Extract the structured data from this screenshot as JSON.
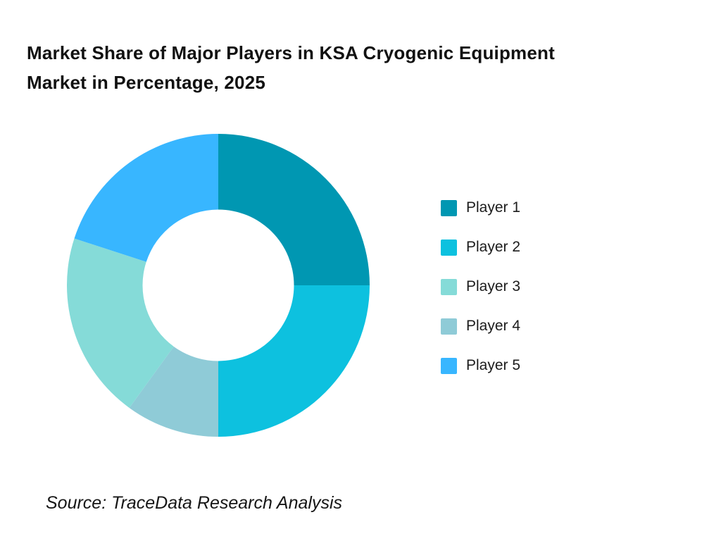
{
  "chart_data": {
    "type": "donut",
    "title": "Market Share of Major Players in KSA Cryogenic Equipment Market in Percentage, 2025",
    "title_lines": [
      "Market Share of Major Players in KSA Cryogenic Equipment",
      "Market in Percentage, 2025"
    ],
    "source": "Source: TraceData Research Analysis",
    "values_unit": "percent",
    "segments": [
      {
        "label": "Player 1",
        "value": 25,
        "color": "#0097B2"
      },
      {
        "label": "Player 2",
        "value": 25,
        "color": "#0DC1DF"
      },
      {
        "label": "Player 3",
        "value": 20,
        "color": "#85DBD8"
      },
      {
        "label": "Player 4",
        "value": 10,
        "color": "#8FCBD7"
      },
      {
        "label": "Player 5",
        "value": 20,
        "color": "#38B6FF"
      }
    ],
    "start_angle_deg": 0,
    "direction": "clockwise",
    "draw_order": [
      "Player 1",
      "Player 2",
      "Player 4",
      "Player 3",
      "Player 5"
    ],
    "inner_radius_ratio": 0.5,
    "legend": {
      "position": "right",
      "entries": [
        "Player 1",
        "Player 2",
        "Player 3",
        "Player 4",
        "Player 5"
      ]
    }
  }
}
